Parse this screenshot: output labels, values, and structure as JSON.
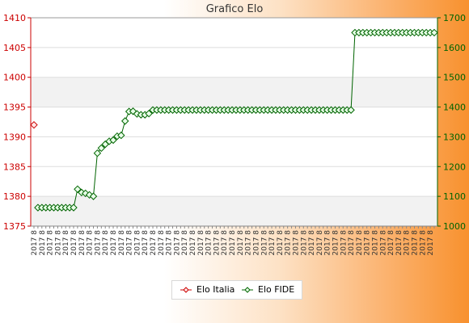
{
  "chart_data": {
    "type": "line",
    "title": "Grafico Elo",
    "y_left": {
      "ticks": [
        1375,
        1380,
        1385,
        1390,
        1395,
        1400,
        1405,
        1410
      ],
      "range": [
        1375,
        1410
      ],
      "color": "#cc0000"
    },
    "y_right": {
      "ticks": [
        1000,
        1100,
        1200,
        1300,
        1400,
        1500,
        1600,
        1700
      ],
      "range": [
        1000,
        1700
      ],
      "color": "#006400"
    },
    "grid": "horizontal",
    "legend": "bottom-center",
    "x_label_sample": "2017 8",
    "series": [
      {
        "name": "Elo Italia",
        "axis": "left",
        "color": "#cc0000",
        "marker": "diamond",
        "values": [
          1392,
          null,
          null,
          null,
          null,
          null,
          null,
          null,
          null,
          null,
          null,
          null,
          null,
          null,
          null,
          null,
          null,
          null,
          null,
          null,
          null,
          null,
          null,
          null,
          null,
          null,
          null,
          null,
          null,
          null,
          null,
          null,
          null,
          null,
          null,
          null,
          null,
          null,
          null,
          null,
          null,
          null,
          null,
          null,
          null,
          null,
          null,
          null,
          null,
          null,
          null,
          null,
          null,
          null,
          null,
          null,
          null,
          null,
          null,
          null,
          null,
          null,
          null,
          null,
          null,
          null,
          null,
          null,
          null,
          null,
          null,
          null,
          null,
          null,
          null,
          null,
          null,
          null,
          null,
          null,
          null,
          null,
          null,
          null,
          null,
          null,
          null,
          null,
          null,
          null,
          null,
          null,
          null,
          null,
          null,
          null,
          null,
          null,
          null,
          null,
          null
        ]
      },
      {
        "name": "Elo FIDE",
        "axis": "right",
        "color": "#006400",
        "marker": "diamond",
        "values": [
          null,
          1062,
          1062,
          1062,
          1062,
          1062,
          1062,
          1062,
          1062,
          1062,
          1062,
          1124,
          1113,
          1110,
          1105,
          1100,
          1245,
          1262,
          1275,
          1285,
          1289,
          1302,
          1305,
          1353,
          1385,
          1386,
          1377,
          1374,
          1374,
          1378,
          1390,
          1390,
          1390,
          1390,
          1390,
          1390,
          1390,
          1390,
          1390,
          1390,
          1390,
          1390,
          1390,
          1390,
          1390,
          1390,
          1390,
          1390,
          1390,
          1390,
          1390,
          1390,
          1390,
          1390,
          1390,
          1390,
          1390,
          1390,
          1390,
          1390,
          1390,
          1390,
          1390,
          1390,
          1390,
          1390,
          1390,
          1390,
          1390,
          1390,
          1390,
          1390,
          1390,
          1390,
          1390,
          1390,
          1390,
          1390,
          1390,
          1390,
          1390,
          1650,
          1650,
          1650,
          1650,
          1650,
          1650,
          1650,
          1650,
          1650,
          1650,
          1650,
          1650,
          1650,
          1650,
          1650,
          1650,
          1650,
          1650,
          1650,
          1650,
          1650
        ]
      }
    ]
  }
}
